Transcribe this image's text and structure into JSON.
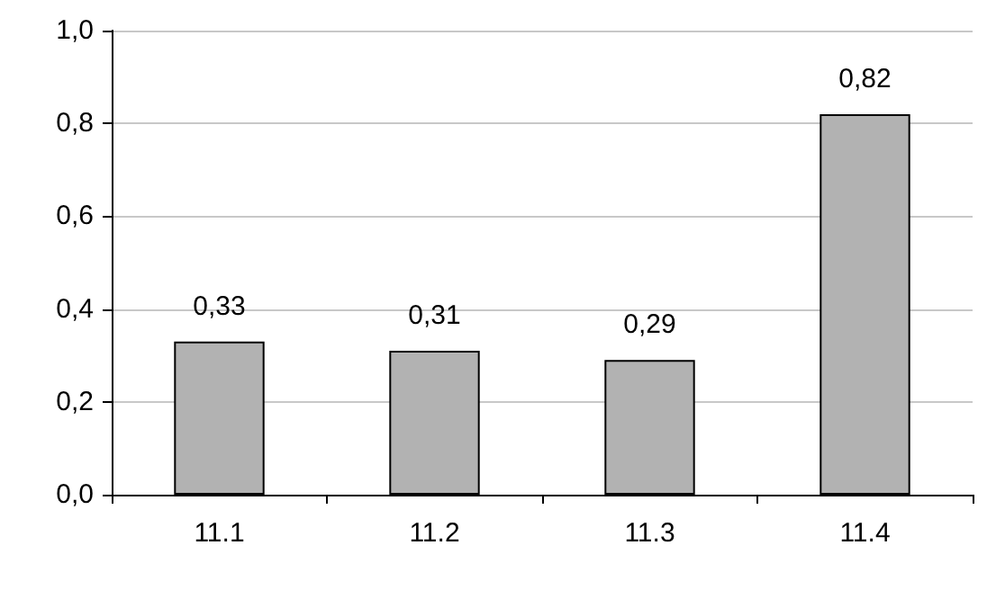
{
  "chart_data": {
    "type": "bar",
    "categories": [
      "11.1",
      "11.2",
      "11.3",
      "11.4"
    ],
    "values": [
      0.33,
      0.31,
      0.29,
      0.82
    ],
    "color": "#b2b2b2",
    "value_labels": [
      "0,33",
      "0,31",
      "0,29",
      "0,82"
    ],
    "ylim": [
      0,
      1
    ],
    "yticks": [
      {
        "value": 0,
        "label": "0,0"
      },
      {
        "value": 0.2,
        "label": "0,2"
      },
      {
        "value": 0.4,
        "label": "0,4"
      },
      {
        "value": 0.6,
        "label": "0,6"
      },
      {
        "value": 0.8,
        "label": "0,8"
      },
      {
        "value": 1,
        "label": "1,0"
      }
    ],
    "grid": "y"
  }
}
